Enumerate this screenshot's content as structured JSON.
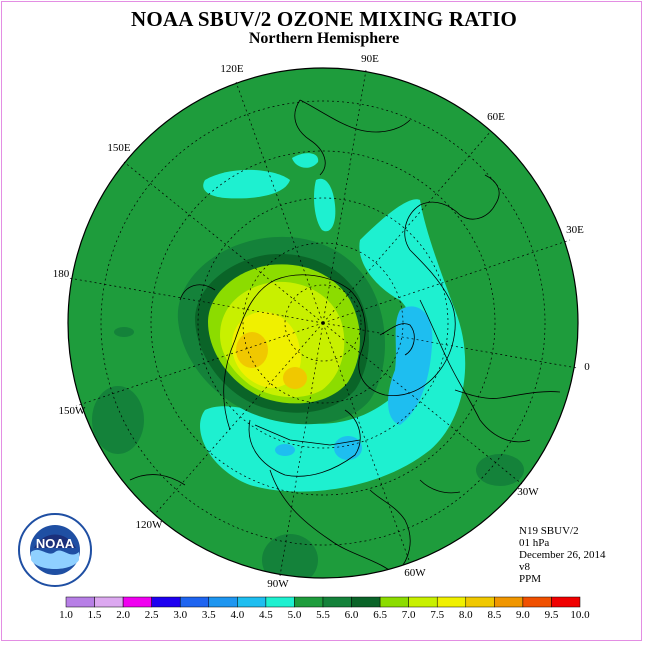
{
  "title": "NOAA SBUV/2 OZONE MIXING RATIO",
  "subtitle": "Northern Hemisphere",
  "longitude_labels": [
    "90E",
    "60E",
    "30E",
    "0",
    "30W",
    "60W",
    "90W",
    "120W",
    "150W",
    "180",
    "150E",
    "120E"
  ],
  "info": {
    "satellite": "N19 SBUV/2",
    "level": "01 hPa",
    "date": "December 26, 2014",
    "version": "v8",
    "units": "PPM"
  },
  "logo": {
    "text": "NOAA"
  },
  "colorbar": {
    "ticks": [
      "1.0",
      "1.5",
      "2.0",
      "2.5",
      "3.0",
      "3.5",
      "4.0",
      "4.5",
      "5.0",
      "5.5",
      "6.0",
      "6.5",
      "7.0",
      "7.5",
      "8.0",
      "8.5",
      "9.0",
      "9.5",
      "10.0"
    ],
    "colors": [
      "#b77fe6",
      "#dca8f0",
      "#f000f0",
      "#1e00f0",
      "#1e64f0",
      "#1e96f0",
      "#1ebef0",
      "#1ef0d0",
      "#1e9c3c",
      "#14823a",
      "#0a6428",
      "#8cdc00",
      "#c8f000",
      "#f0f000",
      "#f0c800",
      "#f09600",
      "#f05000",
      "#f00000",
      "#8b5a3c"
    ]
  },
  "colors": {
    "background_field": "#1e9c3c",
    "frame": "#e38ee3"
  }
}
